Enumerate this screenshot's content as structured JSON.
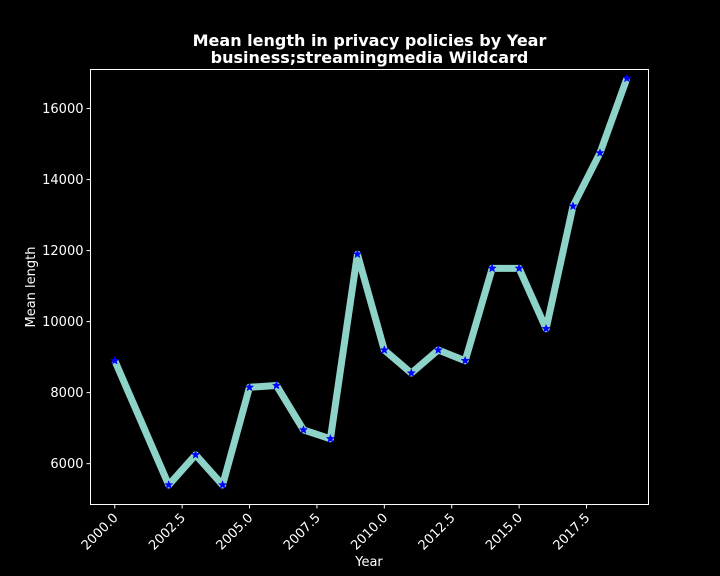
{
  "chart_data": {
    "type": "line",
    "title": "Mean length in privacy policies by Year",
    "subtitle": "business;streamingmedia Wildcard",
    "xlabel": "Year",
    "ylabel": "Mean length",
    "xlim": [
      1999.1,
      2019.8
    ],
    "ylim": [
      4850,
      17100
    ],
    "xticks": [
      2000.0,
      2002.5,
      2005.0,
      2007.5,
      2010.0,
      2012.5,
      2015.0,
      2017.5
    ],
    "xtick_labels": [
      "2000.0",
      "2002.5",
      "2005.0",
      "2007.5",
      "2010.0",
      "2012.5",
      "2015.0",
      "2017.5"
    ],
    "yticks": [
      6000,
      8000,
      10000,
      12000,
      14000,
      16000
    ],
    "ytick_labels": [
      "6000",
      "8000",
      "10000",
      "12000",
      "14000",
      "16000"
    ],
    "grid": false,
    "series": [
      {
        "x": [
          2000,
          2002,
          2003,
          2004,
          2005,
          2006,
          2007,
          2008,
          2009,
          2010,
          2011,
          2012,
          2013,
          2014,
          2015,
          2016,
          2017,
          2018,
          2019
        ],
        "values": [
          8900,
          5400,
          6250,
          5400,
          8150,
          8200,
          6950,
          6700,
          11900,
          9200,
          8550,
          9200,
          8900,
          11500,
          11500,
          9800,
          13250,
          14750,
          16850
        ],
        "line_color": "#8dd3c7",
        "marker_color": "#0000ff",
        "marker": "star"
      }
    ]
  }
}
